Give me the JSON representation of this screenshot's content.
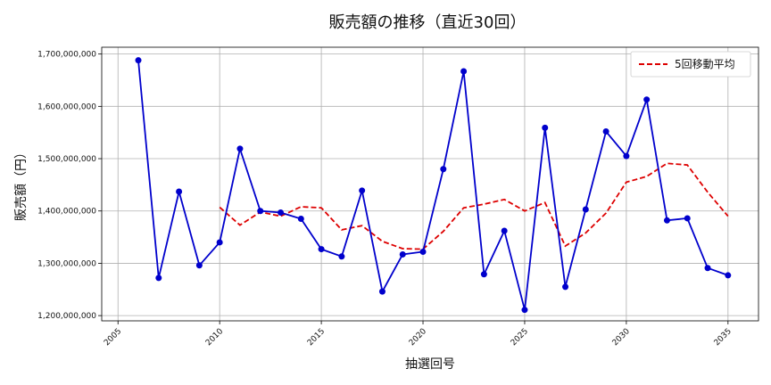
{
  "chart_data": {
    "type": "line",
    "title": "販売額の推移（直近30回）",
    "xlabel": "抽選回号",
    "ylabel": "販売額（円）",
    "xlim": [
      2004.2,
      2036.5
    ],
    "ylim": [
      1190000000,
      1713000000
    ],
    "xticks": [
      2005,
      2010,
      2015,
      2020,
      2025,
      2030,
      2035
    ],
    "xtick_labels": [
      "2005",
      "2010",
      "2015",
      "2020",
      "2025",
      "2030",
      "2035"
    ],
    "yticks": [
      1200000000,
      1300000000,
      1400000000,
      1500000000,
      1600000000,
      1700000000
    ],
    "ytick_labels": [
      "1,200,000,000",
      "1,300,000,000",
      "1,400,000,000",
      "1,500,000,000",
      "1,600,000,000",
      "1,700,000,000"
    ],
    "grid": true,
    "legend_position": "top-right",
    "series": [
      {
        "name": "",
        "color": "#0000cc",
        "style": "solid-markers",
        "x": [
          2006,
          2007,
          2008,
          2009,
          2010,
          2011,
          2012,
          2013,
          2014,
          2015,
          2016,
          2017,
          2018,
          2019,
          2020,
          2021,
          2022,
          2023,
          2024,
          2025,
          2026,
          2027,
          2028,
          2029,
          2030,
          2031,
          2032,
          2033,
          2034,
          2035
        ],
        "y": [
          1688000000,
          1272000000,
          1437000000,
          1296000000,
          1340000000,
          1519000000,
          1400000000,
          1397000000,
          1385000000,
          1327000000,
          1313000000,
          1439000000,
          1246000000,
          1317000000,
          1322000000,
          1480000000,
          1667000000,
          1279000000,
          1362000000,
          1211000000,
          1559000000,
          1255000000,
          1403000000,
          1552000000,
          1505000000,
          1613000000,
          1382000000,
          1386000000,
          1291000000,
          1277000000
        ]
      },
      {
        "name": "5回移動平均",
        "color": "#dd0000",
        "style": "dashed",
        "x": [
          2010,
          2011,
          2012,
          2013,
          2014,
          2015,
          2016,
          2017,
          2018,
          2019,
          2020,
          2021,
          2022,
          2023,
          2024,
          2025,
          2026,
          2027,
          2028,
          2029,
          2030,
          2031,
          2032,
          2033,
          2034,
          2035
        ],
        "y": [
          1407000000,
          1373000000,
          1398000000,
          1390000000,
          1408000000,
          1406000000,
          1364000000,
          1372000000,
          1342000000,
          1328000000,
          1327000000,
          1361000000,
          1406000000,
          1413000000,
          1422000000,
          1400000000,
          1416000000,
          1333000000,
          1358000000,
          1396000000,
          1455000000,
          1466000000,
          1491000000,
          1488000000,
          1436000000,
          1390000000
        ]
      }
    ]
  }
}
